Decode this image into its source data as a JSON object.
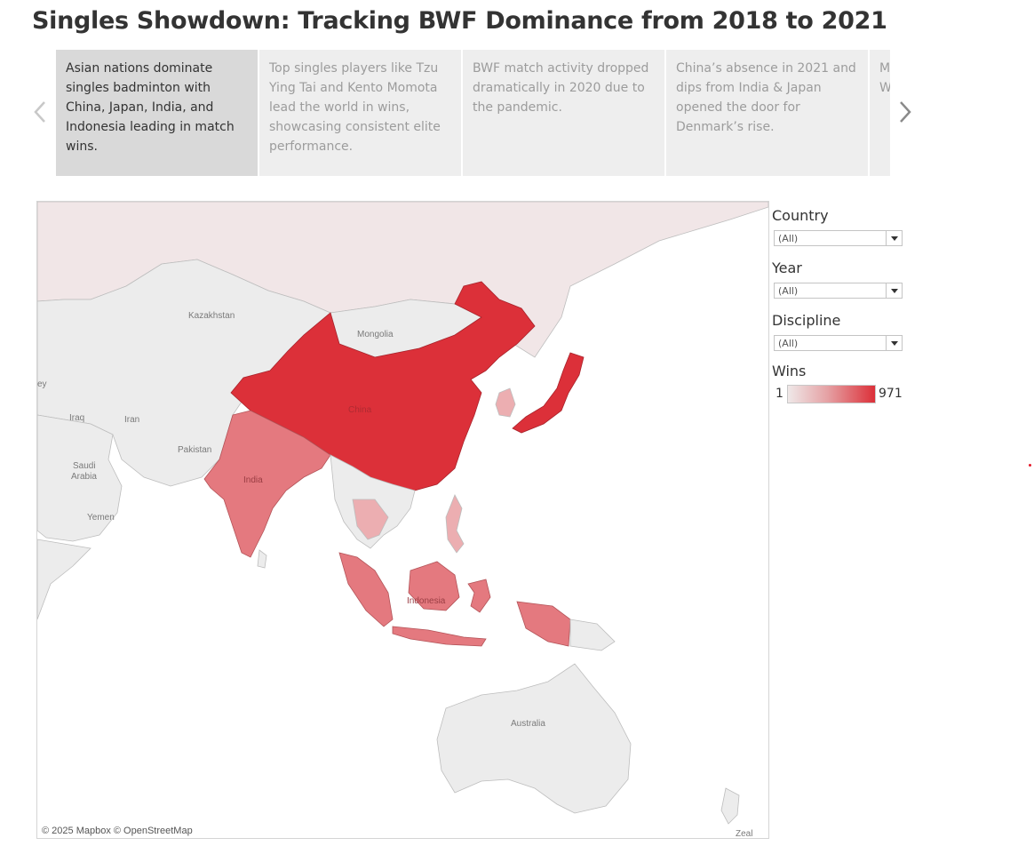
{
  "page": {
    "title": "Singles Showdown: Tracking BWF Dominance from 2018 to 2021"
  },
  "story": {
    "prev_icon": "chevron-left-icon",
    "next_icon": "chevron-right-icon",
    "points": [
      {
        "text": "Asian nations dominate singles badminton with China, Japan, India, and Indonesia leading in match wins.",
        "active": true
      },
      {
        "text": "Top singles players like Tzu Ying Tai and Kento Momota lead the world in wins, showcasing consistent elite performance.",
        "active": false
      },
      {
        "text": "BWF match activity dropped dramatically in 2020 due to the pandemic.",
        "active": false
      },
      {
        "text": "China’s absence in 2021 and dips from India & Japan opened the door for Denmark’s rise.",
        "active": false
      },
      {
        "text": "M sl W re",
        "active": false
      }
    ]
  },
  "map": {
    "attribution": "© 2025 Mapbox © OpenStreetMap",
    "labels": {
      "kazakhstan": "Kazakhstan",
      "mongolia": "Mongolia",
      "china": "China",
      "iran": "Iran",
      "iraq": "Iraq",
      "pakistan": "Pakistan",
      "india": "India",
      "saudi": "Saudi",
      "arabia": "Arabia",
      "yemen": "Yemen",
      "indonesia": "Indonesia",
      "australia": "Australia",
      "new_zealand_partial": "Zeal",
      "edge_partial": "ey"
    },
    "colors": {
      "ocean": "#ffffff",
      "land": "#ececec",
      "russia_tint": "#f1e6e7",
      "high": "#dc3039",
      "mid": "#e4797f",
      "low": "#ecaeb1"
    }
  },
  "filters": {
    "country": {
      "label": "Country",
      "value": "(All)"
    },
    "year": {
      "label": "Year",
      "value": "(All)"
    },
    "discipline": {
      "label": "Discipline",
      "value": "(All)"
    }
  },
  "legend": {
    "title": "Wins",
    "min": "1",
    "max": "971",
    "color_low": "#efe8e8",
    "color_high": "#dc3039"
  }
}
